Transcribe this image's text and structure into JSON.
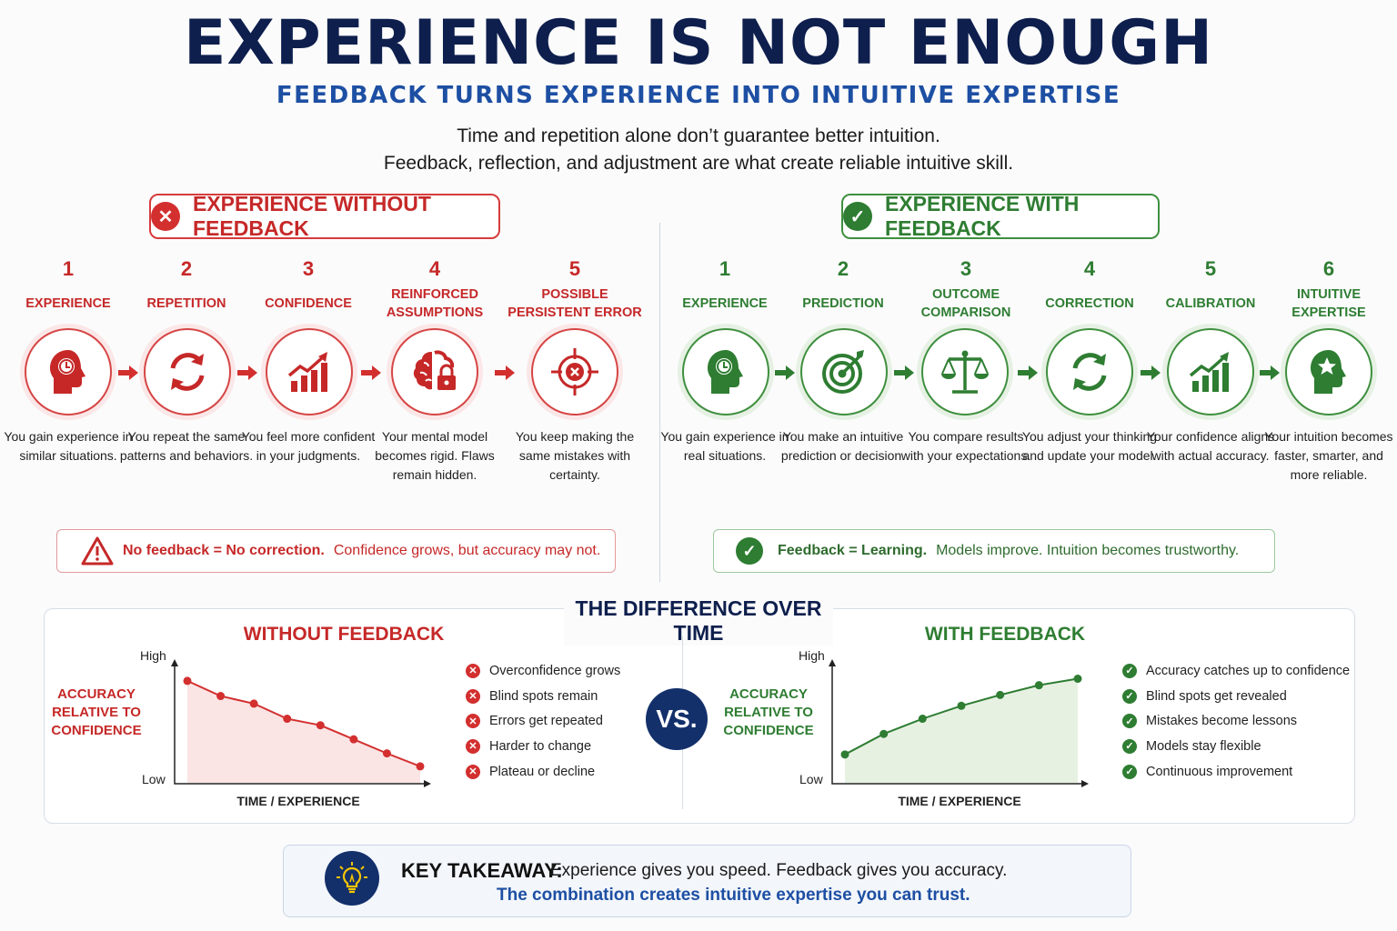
{
  "header": {
    "title": "EXPERIENCE IS NOT ENOUGH",
    "subtitle": "FEEDBACK TURNS EXPERIENCE INTO INTUITIVE EXPERTISE",
    "intro_line1": "Time and repetition alone don’t guarantee better intuition.",
    "intro_line2": "Feedback, reflection, and adjustment are what create reliable intuitive skill."
  },
  "without": {
    "heading": "EXPERIENCE WITHOUT FEEDBACK",
    "steps": [
      {
        "num": "1",
        "label": "EXPERIENCE",
        "desc": "You gain experience in similar situations.",
        "icon": "head-clock-icon"
      },
      {
        "num": "2",
        "label": "REPETITION",
        "desc": "You repeat the same patterns and behaviors.",
        "icon": "cycle-arrows-icon"
      },
      {
        "num": "3",
        "label": "CONFIDENCE",
        "desc": "You feel more confident in your judgments.",
        "icon": "rising-bars-icon"
      },
      {
        "num": "4",
        "label": "REINFORCED ASSUMPTIONS",
        "desc": "Your mental model becomes rigid. Flaws remain hidden.",
        "icon": "brain-lock-icon"
      },
      {
        "num": "5",
        "label": "POSSIBLE PERSISTENT ERROR",
        "desc": "You keep making the same mistakes with certainty.",
        "icon": "target-x-icon"
      }
    ],
    "note_bold": "No feedback = No correction.",
    "note_rest": "Confidence grows, but accuracy may not."
  },
  "with": {
    "heading": "EXPERIENCE WITH FEEDBACK",
    "steps": [
      {
        "num": "1",
        "label": "EXPERIENCE",
        "desc": "You gain experience in real situations.",
        "icon": "head-clock-icon"
      },
      {
        "num": "2",
        "label": "PREDICTION",
        "desc": "You make an intuitive prediction or decision.",
        "icon": "target-arrow-icon"
      },
      {
        "num": "3",
        "label": "OUTCOME COMPARISON",
        "desc": "You compare results with your expectations.",
        "icon": "scales-icon"
      },
      {
        "num": "4",
        "label": "CORRECTION",
        "desc": "You adjust your thinking and update your model.",
        "icon": "cycle-arrows-icon"
      },
      {
        "num": "5",
        "label": "CALIBRATION",
        "desc": "Your confidence aligns with actual accuracy.",
        "icon": "rising-bars-icon"
      },
      {
        "num": "6",
        "label": "INTUITIVE EXPERTISE",
        "desc": "Your intuition becomes faster, smarter, and more reliable.",
        "icon": "head-star-icon"
      }
    ],
    "note_bold": "Feedback = Learning.",
    "note_rest": "Models improve. Intuition becomes trustworthy."
  },
  "difference": {
    "title": "THE DIFFERENCE OVER TIME",
    "vs": "VS."
  },
  "chart_data": [
    {
      "type": "line",
      "title": "WITHOUT FEEDBACK",
      "ylabel": "ACCURACY RELATIVE TO CONFIDENCE",
      "xlabel": "TIME / EXPERIENCE",
      "y_high_label": "High",
      "y_low_label": "Low",
      "x": [
        1,
        2,
        3,
        4,
        5,
        6,
        7,
        8
      ],
      "values": [
        0.9,
        0.76,
        0.69,
        0.55,
        0.49,
        0.36,
        0.23,
        0.11
      ],
      "ylim": [
        0,
        1
      ],
      "color": "#d32f2f",
      "bullets": [
        "Overconfidence grows",
        "Blind spots remain",
        "Errors get repeated",
        "Harder to change",
        "Plateau or decline"
      ]
    },
    {
      "type": "line",
      "title": "WITH FEEDBACK",
      "ylabel": "ACCURACY RELATIVE TO CONFIDENCE",
      "xlabel": "TIME / EXPERIENCE",
      "y_high_label": "High",
      "y_low_label": "Low",
      "x": [
        1,
        2,
        3,
        4,
        5,
        6,
        7
      ],
      "values": [
        0.22,
        0.41,
        0.55,
        0.67,
        0.77,
        0.86,
        0.92
      ],
      "ylim": [
        0,
        1
      ],
      "color": "#2e7d32",
      "bullets": [
        "Accuracy catches up to confidence",
        "Blind spots get revealed",
        "Mistakes become lessons",
        "Models stay flexible",
        "Continuous improvement"
      ]
    }
  ],
  "takeaway": {
    "label": "KEY TAKEAWAY:",
    "line1": "Experience gives you speed. Feedback gives you accuracy.",
    "line2": "The combination creates intuitive expertise you can trust."
  },
  "colors": {
    "navy": "#0e1f4d",
    "red": "#c62828",
    "green": "#2e7d32",
    "blue": "#1d4fa3"
  }
}
